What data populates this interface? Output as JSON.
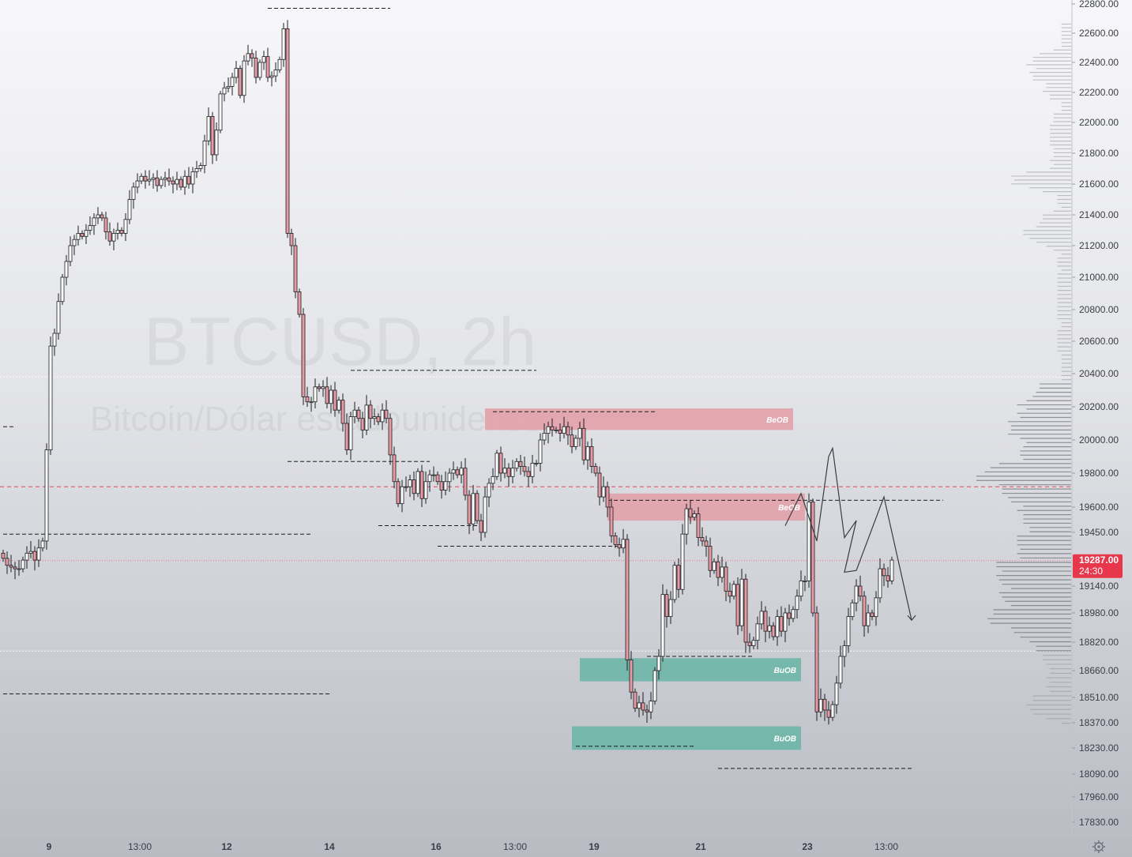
{
  "chart_data": {
    "type": "candlestick",
    "watermark": {
      "symbol": "BTCUSD, 2h",
      "description": "Bitcoin/Dólar estadounidense"
    },
    "y_axis": {
      "ticks": [
        22800,
        22600,
        22400,
        22200,
        22000,
        21800,
        21600,
        21400,
        21200,
        21000,
        20800,
        20600,
        20400,
        20200,
        20000,
        19800,
        19600,
        19450,
        19140,
        18980,
        18820,
        18660,
        18510,
        18370,
        18230,
        18090,
        17960,
        17830
      ],
      "tick_labels": [
        "22800.00",
        "22600.00",
        "22400.00",
        "22200.00",
        "22000.00",
        "21800.00",
        "21600.00",
        "21400.00",
        "21200.00",
        "21000.00",
        "20800.00",
        "20600.00",
        "20400.00",
        "20200.00",
        "20000.00",
        "19800.00",
        "19600.00",
        "19450.00",
        "19140.00",
        "18980.00",
        "18820.00",
        "18660.00",
        "18510.00",
        "18370.00",
        "18230.00",
        "18090.00",
        "17960.00",
        "17830.00"
      ]
    },
    "x_axis": {
      "ticks": [
        {
          "label": "9",
          "bold": true,
          "bar": 6
        },
        {
          "label": "13:00",
          "bold": false,
          "bar": 29
        },
        {
          "label": "12",
          "bold": true,
          "bar": 51
        },
        {
          "label": "14",
          "bold": true,
          "bar": 77
        },
        {
          "label": "16",
          "bold": true,
          "bar": 104
        },
        {
          "label": "13:00",
          "bold": false,
          "bar": 124
        },
        {
          "label": "19",
          "bold": true,
          "bar": 144
        },
        {
          "label": "21",
          "bold": true,
          "bar": 171
        },
        {
          "label": "23",
          "bold": true,
          "bar": 198
        },
        {
          "label": "13:00",
          "bold": false,
          "bar": 218
        }
      ]
    },
    "last_price": {
      "value": 19287,
      "label": "19287.00",
      "countdown": "24:30"
    },
    "close": [
      19300,
      19260,
      19250,
      19240,
      19240,
      19290,
      19330,
      19340,
      19290,
      19360,
      19400,
      19940,
      20570,
      20650,
      20850,
      21000,
      21100,
      21200,
      21240,
      21280,
      21260,
      21300,
      21330,
      21380,
      21400,
      21380,
      21290,
      21230,
      21280,
      21300,
      21280,
      21370,
      21500,
      21580,
      21620,
      21650,
      21620,
      21630,
      21640,
      21590,
      21630,
      21640,
      21620,
      21600,
      21630,
      21580,
      21650,
      21600,
      21680,
      21700,
      21720,
      21880,
      22040,
      21790,
      21950,
      22190,
      22230,
      22240,
      22300,
      22360,
      22180,
      22410,
      22460,
      22430,
      22300,
      22400,
      22440,
      22300,
      22310,
      22350,
      22420,
      22630,
      21280,
      21200,
      20910,
      20770,
      20260,
      20230,
      20230,
      20320,
      20310,
      20320,
      20220,
      20300,
      20180,
      20240,
      20100,
      19940,
      20140,
      20180,
      20130,
      20060,
      20210,
      20130,
      20140,
      20110,
      20180,
      20130,
      19910,
      19750,
      19620,
      19720,
      19720,
      19760,
      19680,
      19810,
      19650,
      19750,
      19790,
      19790,
      19750,
      19700,
      19750,
      19800,
      19820,
      19790,
      19830,
      19670,
      19500,
      19680,
      19520,
      19450,
      19660,
      19740,
      19780,
      19920,
      19800,
      19830,
      19780,
      19830,
      19870,
      19840,
      19810,
      19780,
      19860,
      19860,
      20000,
      20040,
      20080,
      20060,
      20060,
      20040,
      20080,
      20030,
      19960,
      20010,
      20070,
      19880,
      19960,
      19840,
      19800,
      19660,
      19720,
      19600,
      19430,
      19380,
      19360,
      19410,
      18720,
      18540,
      18450,
      18480,
      18440,
      18430,
      18490,
      18660,
      18740,
      19090,
      18960,
      19060,
      19260,
      19120,
      19440,
      19590,
      19540,
      19560,
      19420,
      19400,
      19370,
      19230,
      19280,
      19190,
      19250,
      19110,
      19080,
      19150,
      18910,
      19180,
      18820,
      18800,
      18830,
      18920,
      18990,
      18880,
      18910,
      18850,
      18960,
      18880,
      18980,
      18950,
      19000,
      19080,
      19170,
      19170,
      19630,
      18980,
      18430,
      18500,
      18440,
      18400,
      18470,
      18590,
      18740,
      18800,
      18960,
      19040,
      19140,
      19080,
      18910,
      18980,
      18960,
      19070,
      19240,
      19200,
      19170,
      19290
    ],
    "bars_total": 238,
    "zones": [
      {
        "type": "BeOB",
        "label": "BeOB",
        "bar_start": 122,
        "bar_end": 200,
        "high": 20190,
        "low": 20060,
        "color": "#e2a1a9"
      },
      {
        "type": "BeOB",
        "label": "BeOB",
        "bar_start": 153,
        "bar_end": 203,
        "high": 19680,
        "low": 19520,
        "color": "#e2a1a9"
      },
      {
        "type": "BuOB",
        "label": "BuOB",
        "bar_start": 146,
        "bar_end": 202,
        "high": 18730,
        "low": 18600,
        "color": "#6db6a7"
      },
      {
        "type": "BuOB",
        "label": "BuOB",
        "bar_start": 144,
        "bar_end": 202,
        "high": 18350,
        "low": 18220,
        "color": "#6db6a7"
      }
    ],
    "dashed_levels": [
      {
        "price": 22770,
        "bar_start": 67,
        "bar_end": 98
      },
      {
        "price": 20420,
        "bar_start": 88,
        "bar_end": 135
      },
      {
        "price": 20170,
        "bar_start": 124,
        "bar_end": 165
      },
      {
        "price": 19870,
        "bar_start": 72,
        "bar_end": 108
      },
      {
        "price": 19640,
        "bar_start": 153,
        "bar_end": 238
      },
      {
        "price": 19490,
        "bar_start": 95,
        "bar_end": 121
      },
      {
        "price": 19440,
        "bar_start": 0,
        "bar_end": 78
      },
      {
        "price": 19370,
        "bar_start": 110,
        "bar_end": 158
      },
      {
        "price": 18740,
        "bar_start": 163,
        "bar_end": 190
      },
      {
        "price": 18530,
        "bar_start": 0,
        "bar_end": 83
      },
      {
        "price": 18240,
        "bar_start": 145,
        "bar_end": 175
      },
      {
        "price": 18120,
        "bar_start": 181,
        "bar_end": 230
      },
      {
        "price": 20080,
        "bar_start": 0,
        "bar_end": 3
      }
    ],
    "red_level": 19720,
    "gray_levels": [
      20380,
      18770
    ],
    "projection": [
      [
        198,
        19490
      ],
      [
        202,
        19680
      ],
      [
        206,
        19400
      ],
      [
        209,
        19900
      ],
      [
        210,
        19950
      ],
      [
        213,
        19420
      ],
      [
        216,
        19520
      ],
      [
        213,
        19220
      ],
      [
        216,
        19230
      ],
      [
        223,
        19660
      ],
      [
        230,
        18940
      ]
    ],
    "volume_profile": "visible-range, right-side"
  }
}
